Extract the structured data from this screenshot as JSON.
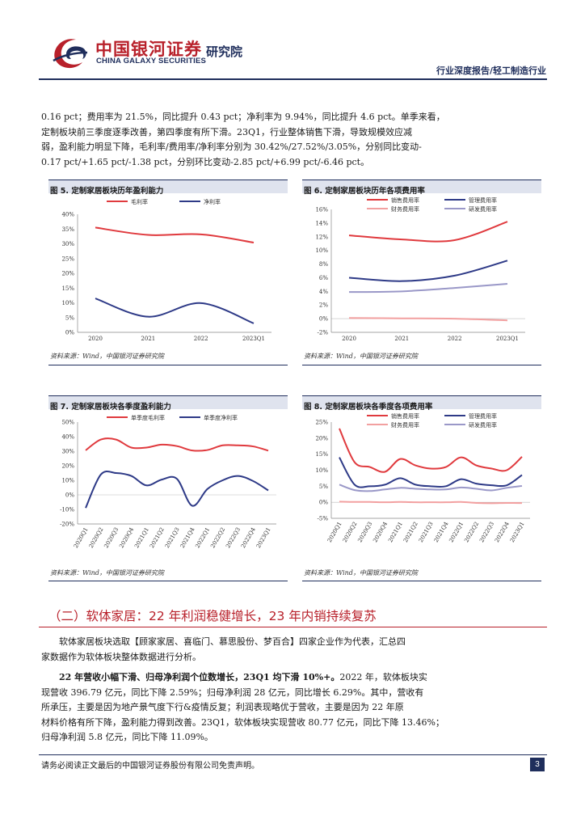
{
  "header": {
    "logo_cn": "中国银河证券",
    "logo_en": "CHINA GALAXY SECURITIES",
    "institute": "研究院",
    "report_tag": "行业深度报告/轻工制造行业"
  },
  "intro": {
    "lines": [
      "0.16 pct；费用率为 21.5%，同比提升 0.43 pct；净利率为 9.94%，同比提升 4.6 pct。单季来看，",
      "定制板块前三季度逐季改善，第四季度有所下滑。23Q1，行业整体销售下滑，导致规模效应减",
      "弱，盈利能力明显下降，毛利率/费用率/净利率分别为 30.42%/27.52%/3.05%，分别同比变动-",
      "0.17 pct/+1.65 pct/-1.38 pct，分别环比变动-2.85 pct/+6.99 pct/-6.46 pct。"
    ]
  },
  "figures": [
    {
      "title": "图 5. 定制家居板块历年盈利能力",
      "source": "资料来源：Wind，中国银河证券研究院"
    },
    {
      "title": "图 6. 定制家居板块历年各项费用率",
      "source": "资料来源：Wind，中国银河证券研究院"
    },
    {
      "title": "图 7. 定制家居板块各季度盈利能力",
      "source": "资料来源：Wind，中国银河证券研究院"
    },
    {
      "title": "图 8. 定制家居板块各季度各项费用率",
      "source": "资料来源：Wind，中国银河证券研究院"
    }
  ],
  "chart_data": [
    {
      "type": "line",
      "title": "图 5. 定制家居板块历年盈利能力",
      "categories": [
        "2020",
        "2021",
        "2022",
        "2023Q1"
      ],
      "series": [
        {
          "name": "毛利率",
          "values": [
            35.5,
            33.0,
            33.2,
            30.4
          ],
          "color": "#e03a3e"
        },
        {
          "name": "净利率",
          "values": [
            11.5,
            5.3,
            9.9,
            3.05
          ],
          "color": "#2e3a87"
        }
      ],
      "ylim": [
        0,
        40
      ],
      "yticks": [
        0,
        5,
        10,
        15,
        20,
        25,
        30,
        35,
        40
      ],
      "ysuffix": "%",
      "legend": "top"
    },
    {
      "type": "line",
      "title": "图 6. 定制家居板块历年各项费用率",
      "categories": [
        "2020",
        "2021",
        "2022",
        "2023Q1"
      ],
      "series": [
        {
          "name": "销售费用率",
          "values": [
            12.2,
            11.6,
            11.5,
            14.2
          ],
          "color": "#e03a3e"
        },
        {
          "name": "管理费用率",
          "values": [
            6.0,
            5.5,
            6.3,
            8.5
          ],
          "color": "#2e3a87"
        },
        {
          "name": "财务费用率",
          "values": [
            0.1,
            0.05,
            0.0,
            -0.25
          ],
          "color": "#f2a0a0"
        },
        {
          "name": "研发费用率",
          "values": [
            3.9,
            4.0,
            4.5,
            5.1
          ],
          "color": "#9a98c8"
        }
      ],
      "ylim": [
        -2,
        16
      ],
      "yticks": [
        -2,
        0,
        2,
        4,
        6,
        8,
        10,
        12,
        14,
        16
      ],
      "ysuffix": "%",
      "legend": "top"
    },
    {
      "type": "line",
      "title": "图 7. 定制家居板块各季度盈利能力",
      "categories": [
        "2020Q1",
        "2020Q2",
        "2020Q3",
        "2020Q4",
        "2021Q1",
        "2021Q2",
        "2021Q3",
        "2021Q4",
        "2022Q1",
        "2022Q2",
        "2022Q3",
        "2022Q4",
        "2023Q1"
      ],
      "series": [
        {
          "name": "单季度毛利率",
          "values": [
            30.6,
            38.0,
            38.0,
            32.5,
            32.5,
            34.5,
            33.5,
            30.5,
            30.8,
            34.0,
            34.0,
            33.3,
            30.4
          ],
          "color": "#e03a3e"
        },
        {
          "name": "单季度净利率",
          "values": [
            -9.0,
            14.0,
            15.0,
            13.0,
            6.5,
            10.5,
            11.0,
            -7.5,
            4.0,
            10.0,
            13.0,
            9.5,
            3.05
          ],
          "color": "#2e3a87"
        }
      ],
      "ylim": [
        -20,
        50
      ],
      "yticks": [
        -20,
        -10,
        0,
        10,
        20,
        30,
        40,
        50
      ],
      "ysuffix": "%",
      "legend": "top"
    },
    {
      "type": "line",
      "title": "图 8. 定制家居板块各季度各项费用率",
      "categories": [
        "2020Q1",
        "2020Q2",
        "2020Q3",
        "2020Q4",
        "2021Q1",
        "2021Q2",
        "2021Q3",
        "2021Q4",
        "2022Q1",
        "2022Q2",
        "2022Q3",
        "2022Q4",
        "2023Q1"
      ],
      "series": [
        {
          "name": "销售费用率",
          "values": [
            23.0,
            12.5,
            11.0,
            9.5,
            13.5,
            11.5,
            10.5,
            11.0,
            14.0,
            11.5,
            10.5,
            10.0,
            14.2
          ],
          "color": "#e03a3e"
        },
        {
          "name": "管理费用率",
          "values": [
            14.0,
            5.5,
            5.0,
            5.5,
            7.5,
            5.5,
            5.0,
            5.0,
            7.2,
            5.8,
            5.3,
            5.3,
            8.5
          ],
          "color": "#2e3a87"
        },
        {
          "name": "财务费用率",
          "values": [
            0.2,
            0.1,
            0.1,
            0.0,
            0.1,
            0.0,
            0.0,
            0.0,
            0.1,
            -0.2,
            -0.3,
            -0.2,
            -0.25
          ],
          "color": "#f2a0a0"
        },
        {
          "name": "研发费用率",
          "values": [
            5.5,
            3.8,
            3.5,
            4.0,
            4.5,
            4.2,
            4.0,
            4.0,
            4.6,
            4.2,
            3.7,
            4.5,
            5.1
          ],
          "color": "#9a98c8"
        }
      ],
      "ylim": [
        -5,
        25
      ],
      "yticks": [
        -5,
        0,
        5,
        10,
        15,
        20,
        25
      ],
      "ysuffix": "%",
      "legend": "top"
    }
  ],
  "section": {
    "heading": "（二）软体家居：22 年利润稳健增长，23 年内销持续复苏",
    "p1_lines": [
      "软体家居板块选取【顾家家居、喜临门、慕思股份、梦百合】四家企业作为代表，汇总四",
      "家数据作为软体板块整体数据进行分析。"
    ],
    "p2_bold": "22 年营收小幅下滑、归母净利润个位数增长，23Q1 均下滑 10%+。",
    "p2_first_rest": "2022 年，软体板块实",
    "p2_lines": [
      "现营收 396.79 亿元，同比下降 2.59%；归母净利润 28 亿元，同比增长 6.29%。其中，营收有",
      "所承压，主要是因为地产景气度下行&疫情反复；利润表现略优于营收，主要是因为 22 年原",
      "材料价格有所下降，盈利能力得到改善。23Q1，软体板块实现营收 80.77 亿元，同比下降 13.46%；",
      "归母净利润 5.8 亿元，同比下降 11.09%。"
    ]
  },
  "footer": {
    "disclaimer": "请务必阅读正文最后的中国银河证券股份有限公司免责声明。",
    "page": "3"
  }
}
